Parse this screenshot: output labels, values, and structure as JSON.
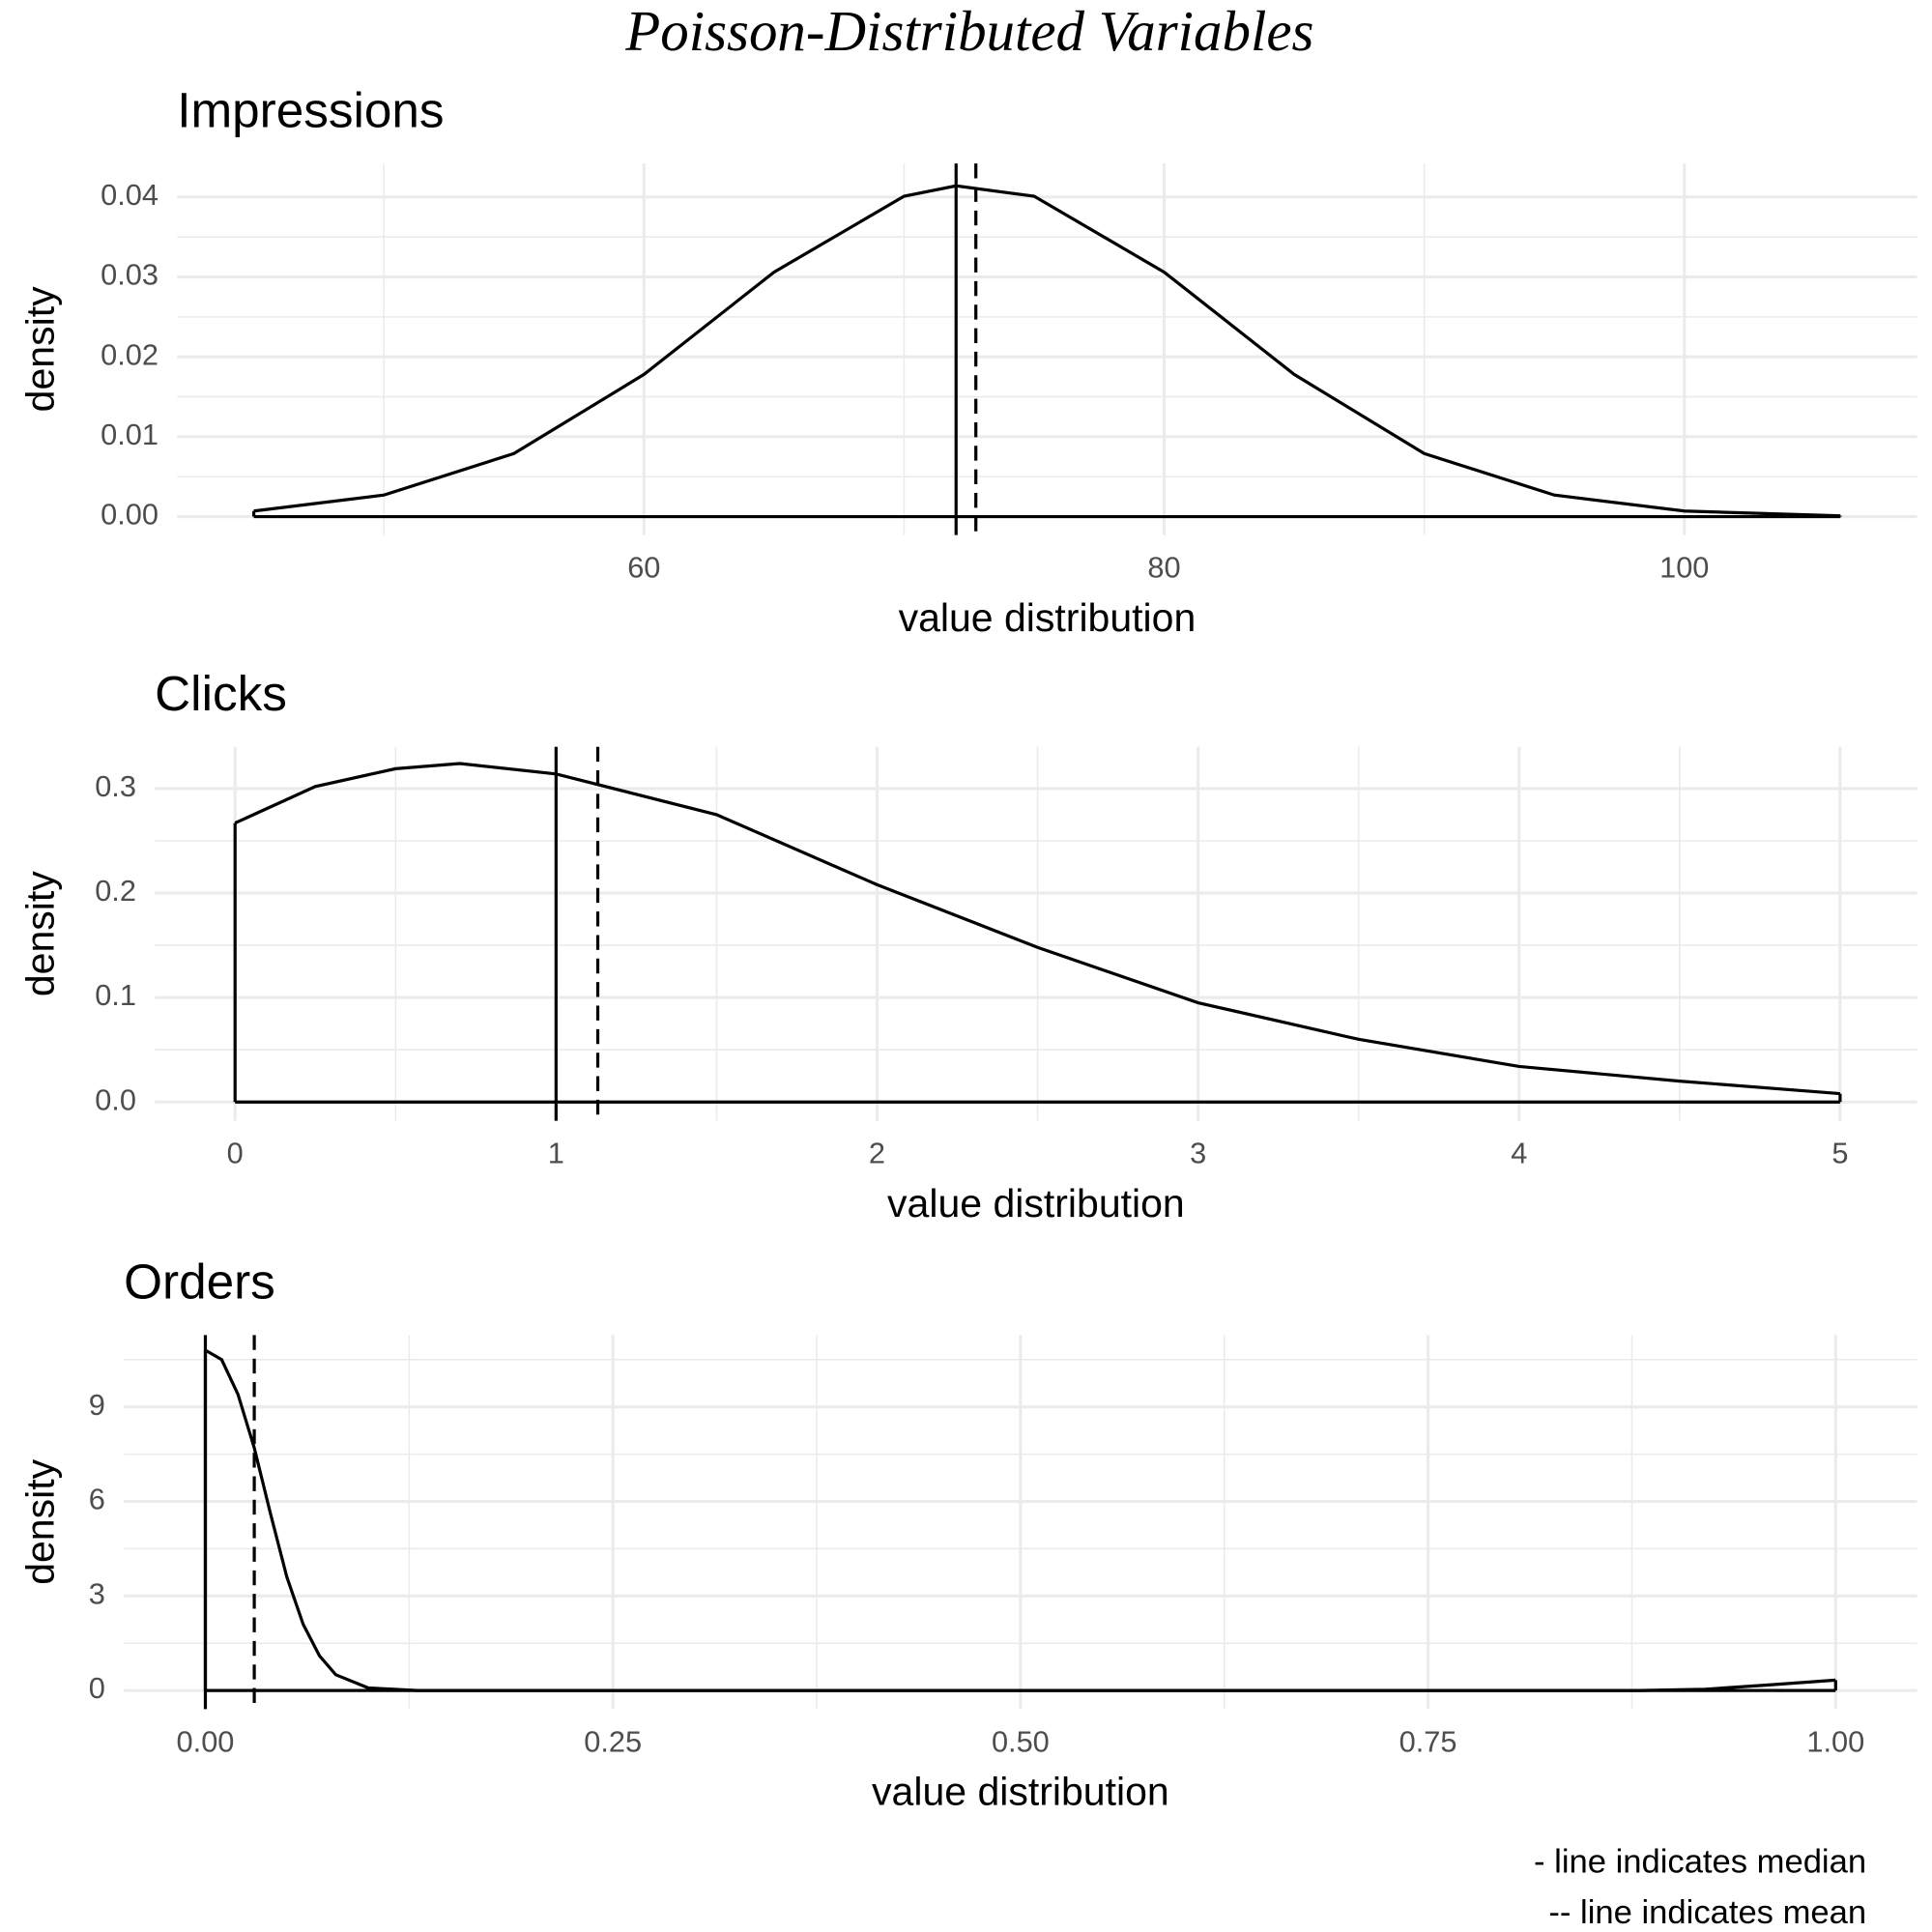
{
  "title": "Poisson-Distributed Variables",
  "caption": [
    "- line indicates median",
    "-- line indicates mean"
  ],
  "chart_data": [
    {
      "type": "line",
      "title": "Impressions",
      "xlabel": "value distribution",
      "ylabel": "density",
      "color": "#000000",
      "x": [
        45,
        50,
        55,
        60,
        65,
        70,
        72,
        75,
        80,
        85,
        90,
        95,
        100,
        106
      ],
      "values": [
        0.0007,
        0.0027,
        0.0079,
        0.0178,
        0.0306,
        0.0401,
        0.0414,
        0.0401,
        0.0306,
        0.0178,
        0.0079,
        0.0027,
        0.0007,
        0.0001
      ],
      "median": 72,
      "mean": 72.76,
      "xlim": [
        42.05,
        108.95
      ],
      "ylim": [
        -0.0023,
        0.0442
      ],
      "xticks": [
        60,
        80,
        100
      ],
      "x_minor_ticks": [
        50,
        70,
        90
      ],
      "yticks": [
        {
          "value": 0,
          "label": "0.00"
        },
        0.01,
        0.02,
        0.03,
        0.04
      ],
      "y_minor_ticks": [
        0.005,
        0.015,
        0.025,
        0.035
      ],
      "grid": true
    },
    {
      "type": "line",
      "title": "Clicks",
      "xlabel": "value distribution",
      "ylabel": "density",
      "color": "#000000",
      "x": [
        0,
        0.25,
        0.5,
        0.7,
        1,
        1.5,
        2,
        2.5,
        3,
        3.5,
        4,
        4.5,
        5
      ],
      "values": [
        0.267,
        0.302,
        0.319,
        0.324,
        0.314,
        0.275,
        0.208,
        0.148,
        0.095,
        0.06,
        0.034,
        0.02,
        0.008
      ],
      "median": 1,
      "mean": 1.13,
      "xlim": [
        -0.25,
        5.24
      ],
      "ylim": [
        -0.018,
        0.34
      ],
      "xticks": [
        0,
        1,
        2,
        3,
        4,
        5
      ],
      "x_minor_ticks": [
        0.5,
        1.5,
        2.5,
        3.5,
        4.5
      ],
      "yticks": [
        {
          "value": 0,
          "label": "0.0"
        },
        0.1,
        0.2,
        0.3
      ],
      "y_minor_ticks": [
        0.05,
        0.15,
        0.25
      ],
      "grid": true
    },
    {
      "type": "line",
      "title": "Orders",
      "xlabel": "value distribution",
      "ylabel": "density",
      "color": "#000000",
      "x": [
        0,
        0.01,
        0.02,
        0.03,
        0.04,
        0.05,
        0.06,
        0.07,
        0.08,
        0.1,
        0.13,
        0.5,
        0.88,
        0.92,
        0.96,
        1
      ],
      "values": [
        10.8,
        10.5,
        9.4,
        7.7,
        5.6,
        3.6,
        2.1,
        1.1,
        0.5,
        0.08,
        0,
        0,
        0,
        0.04,
        0.18,
        0.33
      ],
      "median": 0,
      "mean": 0.03,
      "xlim": [
        -0.05,
        1.05
      ],
      "ylim": [
        -0.59,
        11.28
      ],
      "xticks": [
        {
          "value": 0,
          "label": "0.00"
        },
        0.25,
        {
          "value": 0.5,
          "label": "0.50"
        },
        0.75,
        {
          "value": 1,
          "label": "1.00"
        }
      ],
      "x_minor_ticks": [
        0.125,
        0.375,
        0.625,
        0.875
      ],
      "yticks": [
        0,
        3,
        6,
        9
      ],
      "y_minor_ticks": [
        1.5,
        4.5,
        7.5,
        10.5
      ],
      "grid": true
    }
  ]
}
